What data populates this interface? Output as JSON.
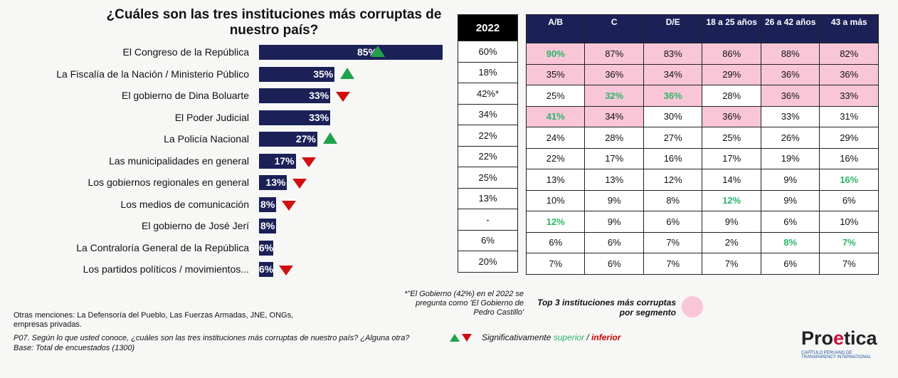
{
  "chart_data": {
    "type": "bar",
    "title": "¿Cuáles son las tres instituciones más corruptas de nuestro país?",
    "categories": [
      "El Congreso de la República",
      "La Fiscalía de la Nación / Ministerio Público",
      "El gobierno de Dina Boluarte",
      "El Poder Judicial",
      "La Policía Nacional",
      "Las municipalidades en general",
      "Los gobiernos regionales en general",
      "Los medios de comunicación",
      "El gobierno de José Jerí",
      "La Contraloría General de la República",
      "Los partidos políticos / movimientos..."
    ],
    "values": [
      85,
      35,
      33,
      33,
      27,
      17,
      13,
      8,
      8,
      6,
      6
    ],
    "value_labels": [
      "85%",
      "35%",
      "33%",
      "33%",
      "27%",
      "17%",
      "13%",
      "8%",
      "8%",
      "6%",
      "6%"
    ],
    "significance": [
      "up",
      "up",
      "down",
      "none",
      "up",
      "down",
      "down",
      "down",
      "none",
      "none",
      "down"
    ],
    "bar_color": "#1b2157",
    "xlim": [
      0,
      100
    ]
  },
  "table_2022": {
    "header": "2022",
    "values": [
      "60%",
      "18%",
      "42%*",
      "34%",
      "22%",
      "22%",
      "25%",
      "13%",
      "-",
      "6%",
      "20%"
    ]
  },
  "segments": {
    "headers": [
      "A/B",
      "C",
      "D/E",
      "18 a 25 años",
      "26 a 42 años",
      "43 a más"
    ],
    "rows": [
      [
        "90%",
        "87%",
        "83%",
        "86%",
        "88%",
        "82%"
      ],
      [
        "35%",
        "36%",
        "34%",
        "29%",
        "36%",
        "36%"
      ],
      [
        "25%",
        "32%",
        "36%",
        "28%",
        "36%",
        "33%"
      ],
      [
        "41%",
        "34%",
        "30%",
        "36%",
        "33%",
        "31%"
      ],
      [
        "24%",
        "28%",
        "27%",
        "25%",
        "26%",
        "29%"
      ],
      [
        "22%",
        "17%",
        "16%",
        "17%",
        "19%",
        "16%"
      ],
      [
        "13%",
        "13%",
        "12%",
        "14%",
        "9%",
        "16%"
      ],
      [
        "10%",
        "9%",
        "8%",
        "12%",
        "9%",
        "6%"
      ],
      [
        "12%",
        "9%",
        "6%",
        "9%",
        "6%",
        "10%"
      ],
      [
        "6%",
        "6%",
        "7%",
        "2%",
        "8%",
        "7%"
      ],
      [
        "7%",
        "6%",
        "7%",
        "7%",
        "6%",
        "7%"
      ]
    ],
    "pink": [
      [
        1,
        1,
        1,
        1,
        1,
        1
      ],
      [
        1,
        1,
        1,
        1,
        1,
        1
      ],
      [
        0,
        1,
        1,
        0,
        1,
        1
      ],
      [
        1,
        1,
        0,
        1,
        0,
        0
      ],
      [
        0,
        0,
        0,
        0,
        0,
        0
      ],
      [
        0,
        0,
        0,
        0,
        0,
        0
      ],
      [
        0,
        0,
        0,
        0,
        0,
        0
      ],
      [
        0,
        0,
        0,
        0,
        0,
        0
      ],
      [
        0,
        0,
        0,
        0,
        0,
        0
      ],
      [
        0,
        0,
        0,
        0,
        0,
        0
      ],
      [
        0,
        0,
        0,
        0,
        0,
        0
      ]
    ],
    "green": [
      [
        1,
        0,
        0,
        0,
        0,
        0
      ],
      [
        0,
        0,
        0,
        0,
        0,
        0
      ],
      [
        0,
        1,
        1,
        0,
        0,
        0
      ],
      [
        1,
        0,
        0,
        0,
        0,
        0
      ],
      [
        0,
        0,
        0,
        0,
        0,
        0
      ],
      [
        0,
        0,
        0,
        0,
        0,
        0
      ],
      [
        0,
        0,
        0,
        0,
        0,
        1
      ],
      [
        0,
        0,
        0,
        1,
        0,
        0
      ],
      [
        1,
        0,
        0,
        0,
        0,
        0
      ],
      [
        0,
        0,
        0,
        0,
        1,
        1
      ],
      [
        0,
        0,
        0,
        0,
        0,
        0
      ]
    ],
    "pink_color": "#f9c6d8",
    "green_color": "#2bb566"
  },
  "notes": {
    "footnote_2022": "*\"El Gobierno (42%) en el 2022 se pregunta como 'El Gobierno de Pedro Castillo'",
    "legend_pink": "Top 3 instituciones más corruptas por segmento",
    "otras": "Otras menciones: La Defensoría del Pueblo, Las Fuerzas Armadas, JNE, ONGs, empresas privadas.",
    "question": "P07. Según lo que usted conoce, ¿cuáles son las tres instituciones más corruptas de nuestro país? ¿Alguna otra?",
    "base": "Base: Total de encuestados  (1300)",
    "sig_prefix": "Significativamente ",
    "sig_superior": "superior",
    "sig_sep": " / ",
    "sig_inferior": "inferior"
  },
  "logo": {
    "name": "Proetica",
    "tagline": "CAPÍTULO PERUANO DE TRANSPARENCY INTERNATIONAL"
  }
}
